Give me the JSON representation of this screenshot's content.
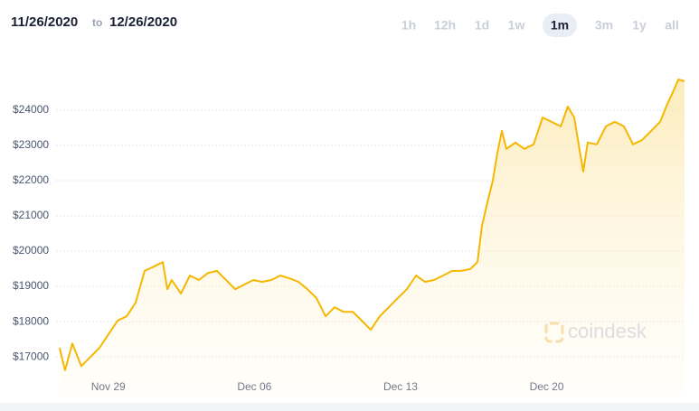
{
  "header": {
    "start_date": "11/26/2020",
    "separator": "to",
    "end_date": "12/26/2020",
    "ranges": [
      "1h",
      "12h",
      "1d",
      "1w",
      "1m",
      "3m",
      "1y",
      "all"
    ],
    "selected_range": "1m"
  },
  "chart_data": {
    "type": "line",
    "color": "#f5b700",
    "area": true,
    "grid": true,
    "watermark": "coindesk",
    "x": [
      0.67,
      0.93,
      1.28,
      1.71,
      2.15,
      2.58,
      3.01,
      3.45,
      3.88,
      4.31,
      4.74,
      5.18,
      5.61,
      5.83,
      6.04,
      6.48,
      6.91,
      7.34,
      7.78,
      8.21,
      8.64,
      9.08,
      9.51,
      9.94,
      10.37,
      10.81,
      11.24,
      11.67,
      12.11,
      12.54,
      12.97,
      13.41,
      13.84,
      14.27,
      14.71,
      15.14,
      15.57,
      16.0,
      16.44,
      16.87,
      17.3,
      17.74,
      18.17,
      18.6,
      19.04,
      19.47,
      19.9,
      20.34,
      20.68,
      20.9,
      21.2,
      21.42,
      21.63,
      21.85,
      22.07,
      22.5,
      22.93,
      23.37,
      23.8,
      24.23,
      24.67,
      25.01,
      25.32,
      25.53,
      25.75,
      25.96,
      26.4,
      26.83,
      27.26,
      27.7,
      28.13,
      28.56,
      29.0,
      29.43,
      29.78,
      30.08,
      30.3,
      30.6
    ],
    "values": [
      17260,
      16620,
      17380,
      16740,
      17000,
      17260,
      17640,
      18030,
      18150,
      18540,
      19440,
      19560,
      19690,
      18920,
      19180,
      18800,
      19310,
      19180,
      19380,
      19440,
      19180,
      18920,
      19050,
      19180,
      19130,
      19180,
      19310,
      19230,
      19130,
      18920,
      18670,
      18150,
      18410,
      18280,
      18280,
      18030,
      17770,
      18150,
      18410,
      18670,
      18920,
      19310,
      19130,
      19180,
      19310,
      19440,
      19440,
      19490,
      19690,
      20720,
      21490,
      22000,
      22770,
      23410,
      22900,
      23080,
      22900,
      23030,
      23790,
      23670,
      23540,
      24100,
      23790,
      23030,
      22260,
      23080,
      23030,
      23540,
      23670,
      23540,
      23030,
      23150,
      23410,
      23670,
      24180,
      24560,
      24870,
      24820
    ],
    "xlim": [
      0.5,
      30.6
    ],
    "ylim": [
      15850,
      25330
    ],
    "xticks": [
      {
        "value": 3,
        "label": "Nov 29"
      },
      {
        "value": 10,
        "label": "Dec 06"
      },
      {
        "value": 17,
        "label": "Dec 13"
      },
      {
        "value": 24,
        "label": "Dec 20"
      }
    ],
    "yticks": [
      {
        "value": 17000,
        "label": "$17000"
      },
      {
        "value": 18000,
        "label": "$18000"
      },
      {
        "value": 19000,
        "label": "$19000"
      },
      {
        "value": 20000,
        "label": "$20000"
      },
      {
        "value": 21000,
        "label": "$21000"
      },
      {
        "value": 22000,
        "label": "$22000"
      },
      {
        "value": 23000,
        "label": "$23000"
      },
      {
        "value": 24000,
        "label": "$24000"
      }
    ]
  }
}
